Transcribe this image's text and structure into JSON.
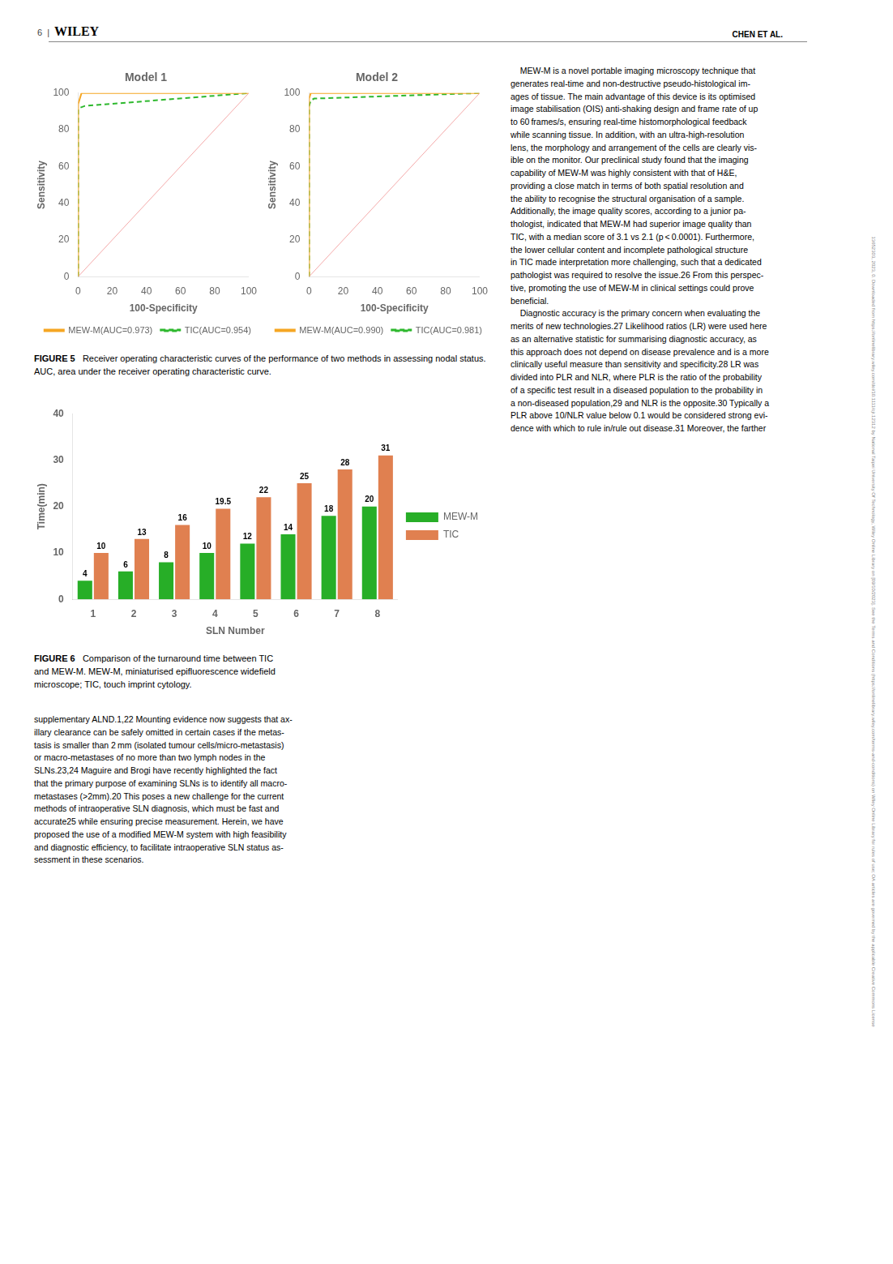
{
  "chart_data": [
    {
      "type": "line",
      "title": "Model 1",
      "xlabel": "100-Specificity",
      "ylabel": "Sensitivity",
      "xlim": [
        0,
        100
      ],
      "ylim": [
        0,
        100
      ],
      "xticks": [
        0,
        20,
        40,
        60,
        80,
        100
      ],
      "yticks": [
        0,
        20,
        40,
        60,
        80,
        100
      ],
      "grid": false,
      "legend": "lower right",
      "series": [
        {
          "color": "#F4AAAA",
          "line_style": "solid",
          "x": [
            0,
            100
          ],
          "values": [
            0,
            100
          ]
        },
        {
          "name": "MEW-M(AUC=0.973)",
          "color": "#F5A623",
          "line_style": "solid",
          "x": [
            0,
            0,
            2,
            100
          ],
          "values": [
            0,
            94,
            100,
            100
          ]
        },
        {
          "name": "TIC(AUC=0.954)",
          "color": "#2DB82D",
          "line_style": "dashed",
          "x": [
            0,
            0,
            1,
            4,
            100
          ],
          "values": [
            0,
            91,
            92,
            93,
            100
          ]
        }
      ]
    },
    {
      "type": "line",
      "title": "Model 2",
      "xlabel": "100-Specificity",
      "ylabel": "Sensitivity",
      "xlim": [
        0,
        100
      ],
      "ylim": [
        0,
        100
      ],
      "xticks": [
        0,
        20,
        40,
        60,
        80,
        100
      ],
      "yticks": [
        0,
        20,
        40,
        60,
        80,
        100
      ],
      "grid": false,
      "legend": "lower right",
      "series": [
        {
          "color": "#F4AAAA",
          "line_style": "solid",
          "x": [
            0,
            100
          ],
          "values": [
            0,
            100
          ]
        },
        {
          "name": "MEW-M(AUC=0.990)",
          "color": "#F5A623",
          "line_style": "solid",
          "x": [
            0,
            0,
            1,
            100
          ],
          "values": [
            0,
            97,
            100,
            100
          ]
        },
        {
          "name": "TIC(AUC=0.981)",
          "color": "#2DB82D",
          "line_style": "dashed",
          "x": [
            0,
            0,
            1,
            3,
            100
          ],
          "values": [
            0,
            93,
            96,
            97,
            100
          ]
        }
      ]
    },
    {
      "type": "bar",
      "xlabel": "SLN Number",
      "ylabel": "Time(min)",
      "categories": [
        "1",
        "2",
        "3",
        "4",
        "5",
        "6",
        "7",
        "8"
      ],
      "ylim": [
        0,
        40
      ],
      "yticks": [
        0,
        10,
        20,
        30,
        40
      ],
      "grid": false,
      "legend": "right",
      "data_labels": true,
      "series": [
        {
          "name": "MEW-M",
          "color": "#27AE27",
          "values": [
            4,
            6,
            8,
            10,
            12,
            14,
            18,
            20
          ]
        },
        {
          "name": "TIC",
          "color": "#E08050",
          "values": [
            10,
            13,
            16,
            19.5,
            22,
            25,
            28,
            31
          ]
        }
      ]
    }
  ],
  "annotations": [
    "6",
    "|",
    "WILEY",
    "CHEN ET AL.",
    "FIGURE 5",
    "   Receiver operating characteristic curves of the performance of two methods in assessing nodal status. AUC, area under the receiver operating characteristic curve.",
    "FIGURE 6",
    "   Comparison of the turnaround time between TIC\nand MEW-M. MEW-M, miniaturised epifluorescence widefield\nmicroscope; TIC, touch imprint cytology.",
    "supplementary ALND.1,22 Mounting evidence now suggests that ax-\nillary clearance can be safely omitted in certain cases if the metas-\ntasis is smaller than 2 mm (isolated tumour cells/micro-metastasis)\nor macro-metastases of no more than two lymph nodes in the\nSLNs.23,24 Maguire and Brogi have recently highlighted the fact\nthat the primary purpose of examining SLNs is to identify all macro-\nmetastases (>2mm).20 This poses a new challenge for the current\nmethods of intraoperative SLN diagnosis, which must be fast and\naccurate25 while ensuring precise measurement. Herein, we have\nproposed the use of a modified MEW-M system with high feasibility\nand diagnostic efficiency, to facilitate intraoperative SLN status as-\nsessment in these scenarios.",
    "    MEW-M is a novel portable imaging microscopy technique that\ngenerates real-time and non-destructive pseudo-histological im-\nages of tissue. The main advantage of this device is its optimised\nimage stabilisation (OIS) anti-shaking design and frame rate of up\nto 60 frames/s, ensuring real-time histomorphological feedback\nwhile scanning tissue. In addition, with an ultra-high-resolution\nlens, the morphology and arrangement of the cells are clearly vis-\nible on the monitor. Our preclinical study found that the imaging\ncapability of MEW-M was highly consistent with that of H&E,\nproviding a close match in terms of both spatial resolution and\nthe ability to recognise the structural organisation of a sample.\nAdditionally, the image quality scores, according to a junior pa-\nthologist, indicated that MEW-M had superior image quality than\nTIC, with a median score of 3.1 vs 2.1 (p < 0.0001). Furthermore,\nthe lower cellular content and incomplete pathological structure\nin TIC made interpretation more challenging, such that a dedicated\npathologist was required to resolve the issue.26 From this perspec-\ntive, promoting the use of MEW-M in clinical settings could prove\nbeneficial.\n    Diagnostic accuracy is the primary concern when evaluating the\nmerits of new technologies.27 Likelihood ratios (LR) were used here\nas an alternative statistic for summarising diagnostic accuracy, as\nthis approach does not depend on disease prevalence and is a more\nclinically useful measure than sensitivity and specificity.28 LR was\ndivided into PLR and NLR, where PLR is the ratio of the probability\nof a specific test result in a diseased population to the probability in\na non-diseased population,29 and NLR is the opposite.30 Typically a\nPLR above 10/NLR value below 0.1 would be considered strong evi-\ndence with which to rule in/rule out disease.31 Moreover, the farther",
    "13652303, 2023, 0. Downloaded from https://onlinelibrary.wiley.com/doi/10.1111/cjr.12312 by National Taipei University Of Technology, Wiley Online Library on [09/10/2023]. See the Terms and Conditions (https://onlinelibrary.wiley.com/terms-and-conditions) on Wiley Online Library for rules of use; OA articles are governed by the applicable Creative Commons License"
  ]
}
